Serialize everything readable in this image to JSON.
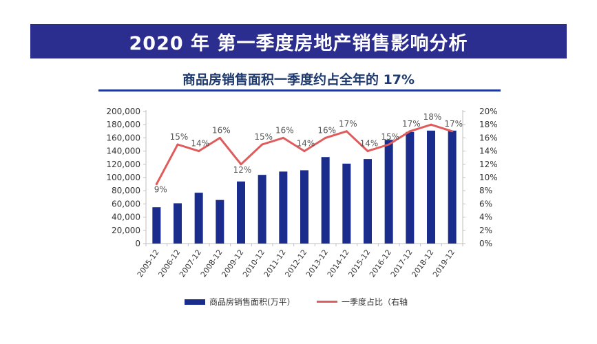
{
  "banner": {
    "title": "2020 年 第一季度房地产销售影响分析"
  },
  "chart_title": "商品房销售面积一季度约占全年的 17%",
  "chart_data": {
    "type": "bar",
    "categories": [
      "2005-12",
      "2006-12",
      "2007-12",
      "2008-12",
      "2009-12",
      "2010-12",
      "2011-12",
      "2012-12",
      "2013-12",
      "2014-12",
      "2015-12",
      "2016-12",
      "2017-12",
      "2018-12",
      "2019-12"
    ],
    "series": [
      {
        "name": "商品房销售面积(万平）",
        "type": "bar",
        "axis": "left",
        "values": [
          55000,
          61000,
          77000,
          66000,
          94000,
          104000,
          109000,
          111000,
          131000,
          121000,
          128000,
          157000,
          169000,
          171000,
          171000
        ]
      },
      {
        "name": "一季度占比（右轴",
        "type": "line",
        "axis": "right",
        "values": [
          9,
          15,
          14,
          16,
          12,
          15,
          16,
          14,
          16,
          17,
          14,
          15,
          17,
          18,
          17
        ],
        "labels": [
          "9%",
          "15%",
          "14%",
          "16%",
          "12%",
          "15%",
          "16%",
          "14%",
          "16%",
          "17%",
          "14%",
          "15%",
          "17%",
          "18%",
          "17%"
        ]
      }
    ],
    "y_left": {
      "min": 0,
      "max": 200000,
      "ticks": [
        "0",
        "20,000",
        "40,000",
        "60,000",
        "80,000",
        "100,000",
        "120,000",
        "140,000",
        "160,000",
        "180,000",
        "200,000"
      ]
    },
    "y_right": {
      "min": 0,
      "max": 20,
      "ticks": [
        "0%",
        "2%",
        "4%",
        "6%",
        "8%",
        "10%",
        "12%",
        "14%",
        "16%",
        "18%",
        "20%"
      ]
    },
    "grid": false,
    "legend_position": "bottom",
    "colors": {
      "bar": "#1a2d8c",
      "line": "#e05b5b"
    }
  }
}
